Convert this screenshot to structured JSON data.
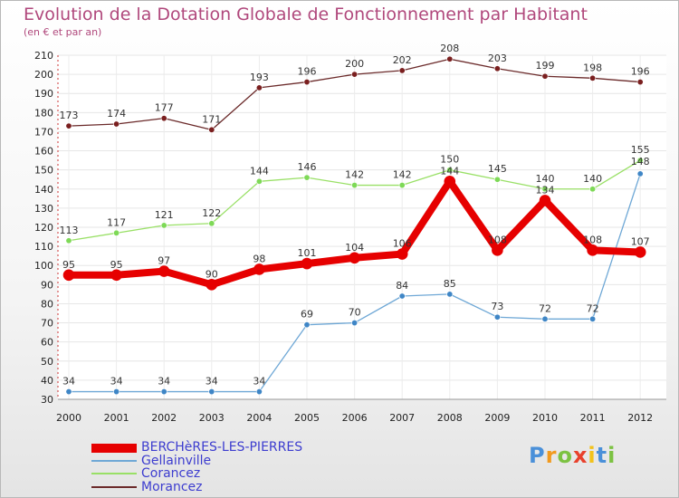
{
  "chart_data": {
    "type": "line",
    "title": "Evolution de la Dotation Globale de Fonctionnement par Habitant",
    "subtitle": "(en € et par an)",
    "xlabel": "",
    "ylabel": "",
    "ylim": [
      30,
      210
    ],
    "yticks": [
      30,
      40,
      50,
      60,
      70,
      80,
      90,
      100,
      110,
      120,
      130,
      140,
      150,
      160,
      170,
      180,
      190,
      200,
      210
    ],
    "categories": [
      "2000",
      "2001",
      "2002",
      "2003",
      "2004",
      "2005",
      "2006",
      "2007",
      "2008",
      "2009",
      "2010",
      "2011",
      "2012"
    ],
    "grid": true,
    "legend_position": "bottom-left",
    "series": [
      {
        "name": "Morancez",
        "color": "#6b2a2a",
        "values": [
          173,
          174,
          177,
          171,
          193,
          196,
          200,
          202,
          208,
          203,
          199,
          198,
          196
        ]
      },
      {
        "name": "Corancez",
        "color": "#99e066",
        "values": [
          113,
          117,
          121,
          122,
          144,
          146,
          142,
          142,
          150,
          145,
          140,
          140,
          155
        ]
      },
      {
        "name": "Gellainville",
        "color": "#6fa8d6",
        "values": [
          34,
          34,
          34,
          34,
          34,
          69,
          70,
          84,
          85,
          73,
          72,
          72,
          148
        ]
      },
      {
        "name": "BERCHèRES-LES-PIERRES",
        "color": "#e60000",
        "values": [
          95,
          95,
          97,
          90,
          98,
          101,
          104,
          106,
          144,
          108,
          134,
          108,
          107
        ]
      }
    ],
    "point_labels": [
      {
        "series": "Morancez",
        "labels": [
          "173",
          "174",
          "177",
          "171",
          "193",
          "196",
          "200",
          "202",
          "208",
          "203",
          "199",
          "198",
          "196"
        ]
      },
      {
        "series": "Corancez",
        "labels": [
          "113",
          "117",
          "121",
          "122",
          "144",
          "146",
          "142",
          "142",
          "150",
          "145",
          "140",
          "140",
          "155"
        ]
      },
      {
        "series": "Gellainville",
        "labels": [
          "34",
          "34",
          "34",
          "34",
          "34",
          "69",
          "70",
          "84",
          "85",
          "73",
          "72",
          "72",
          "148"
        ]
      },
      {
        "series": "BERCHèRES-LES-PIERRES",
        "labels": [
          "95",
          "95",
          "97",
          "90",
          "98",
          "101",
          "104",
          "106",
          "144",
          "108",
          "134",
          "108",
          "107"
        ]
      }
    ]
  },
  "legend": {
    "items": [
      {
        "label": "BERCHèRES-LES-PIERRES",
        "color": "#e60000"
      },
      {
        "label": "Gellainville",
        "color": "#6fa8d6"
      },
      {
        "label": "Corancez",
        "color": "#99e066"
      },
      {
        "label": "Morancez",
        "color": "#6b2a2a"
      }
    ]
  },
  "brand": {
    "letters": [
      "P",
      "r",
      "o",
      "x",
      "i",
      "t",
      "i"
    ],
    "colors": [
      "#4a90d9",
      "#f29a1e",
      "#7cc242",
      "#e8412c",
      "#f2c21b",
      "#4a90d9",
      "#7cc242"
    ]
  }
}
